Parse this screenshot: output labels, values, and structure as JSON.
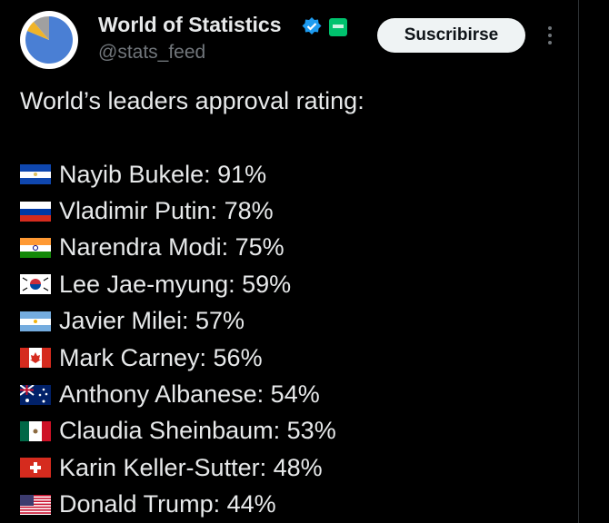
{
  "header": {
    "name": "World of Statistics",
    "handle": "@stats_feed",
    "button": "Suscribirse"
  },
  "post": {
    "text": "World’s leaders approval rating:",
    "items": [
      "Nayib Bukele: 91%",
      "Vladimir Putin: 78%",
      "Narendra Modi: 75%",
      "Lee Jae-myung: 59%",
      "Javier Milei: 57%",
      "Mark Carney: 56%",
      "Anthony Albanese: 54%",
      "Claudia Sheinbaum: 53%",
      "Karin Keller-Sutter: 48%",
      "Donald Trump: 44%"
    ]
  }
}
